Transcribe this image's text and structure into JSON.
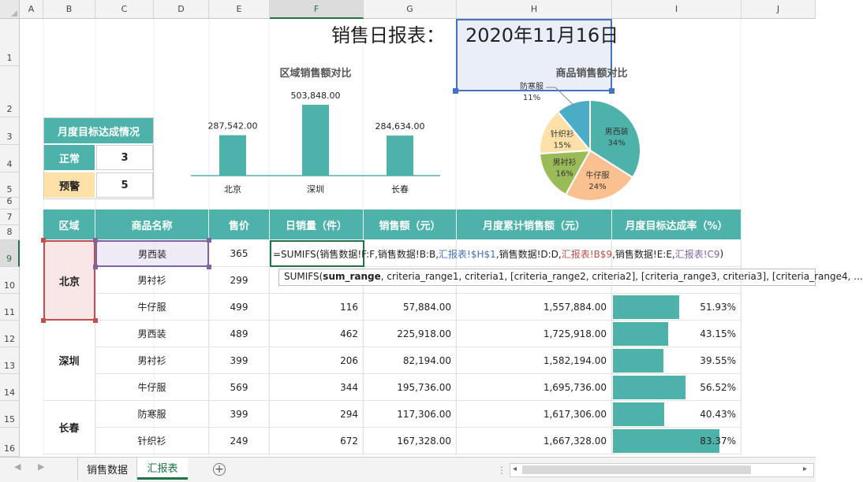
{
  "columns": [
    "A",
    "B",
    "C",
    "D",
    "E",
    "F",
    "G",
    "H",
    "I",
    "J"
  ],
  "rows": [
    "1",
    "2",
    "3",
    "4",
    "5",
    "6",
    "7",
    "8",
    "9",
    "10",
    "11",
    "12",
    "13",
    "14",
    "15",
    "16"
  ],
  "report": {
    "title": "销售日报表：",
    "date": "2020年11月16日"
  },
  "kpi": {
    "title": "月度目标达成情况",
    "normal_label": "正常",
    "normal_value": "3",
    "warn_label": "预警",
    "warn_value": "5"
  },
  "chart_data": [
    {
      "type": "bar",
      "title": "区域销售额对比",
      "categories": [
        "北京",
        "深圳",
        "长春"
      ],
      "values": [
        287542.0,
        503848.0,
        284634.0
      ],
      "value_labels": [
        "287,542.00",
        "503,848.00",
        "284,634.00"
      ],
      "xlabel": "",
      "ylabel": ""
    },
    {
      "type": "pie",
      "title": "商品销售额对比",
      "labels": [
        "男西装",
        "牛仔服",
        "男衬衫",
        "针织衫",
        "防寒服"
      ],
      "values": [
        34,
        24,
        16,
        15,
        11
      ],
      "pct_labels": [
        "34%",
        "24%",
        "16%",
        "15%",
        "11%"
      ],
      "colors": [
        "#4db3aa",
        "#fbc08f",
        "#9bbb59",
        "#fde1a8",
        "#4bacc6"
      ]
    }
  ],
  "table": {
    "headers": [
      "区域",
      "商品名称",
      "售价",
      "日销量（件）",
      "销售额（元）",
      "月度累计销售额（元）",
      "月度目标达成率（%）"
    ],
    "regions": [
      "北京",
      "深圳",
      "长春"
    ],
    "rows": [
      {
        "name": "男西装",
        "price": "365",
        "qty": "",
        "sales": "",
        "cum": "",
        "rate": "",
        "pct": 0
      },
      {
        "name": "男衬衫",
        "price": "299",
        "qty": "",
        "sales": "",
        "cum": "",
        "rate": "",
        "pct": 0
      },
      {
        "name": "牛仔服",
        "price": "499",
        "qty": "116",
        "sales": "57,884.00",
        "cum": "1,557,884.00",
        "rate": "51.93%",
        "pct": 51.93
      },
      {
        "name": "男西装",
        "price": "489",
        "qty": "462",
        "sales": "225,918.00",
        "cum": "1,725,918.00",
        "rate": "43.15%",
        "pct": 43.15
      },
      {
        "name": "男衬衫",
        "price": "399",
        "qty": "206",
        "sales": "82,194.00",
        "cum": "1,582,194.00",
        "rate": "39.55%",
        "pct": 39.55
      },
      {
        "name": "牛仔服",
        "price": "569",
        "qty": "344",
        "sales": "195,736.00",
        "cum": "1,695,736.00",
        "rate": "56.52%",
        "pct": 56.52
      },
      {
        "name": "防寒服",
        "price": "399",
        "qty": "294",
        "sales": "117,306.00",
        "cum": "1,617,306.00",
        "rate": "40.43%",
        "pct": 40.43
      },
      {
        "name": "针织衫",
        "price": "249",
        "qty": "672",
        "sales": "167,328.00",
        "cum": "1,667,328.00",
        "rate": "83.37%",
        "pct": 83.37
      }
    ]
  },
  "formula": {
    "p1": "=SUMIFS(销售数据!F:F,销售数据!B:B,",
    "r1": "汇报表!$H$1",
    "p2": ",销售数据!D:D,",
    "r2": "汇报表!B$9",
    "p3": ",销售数据!E:E,",
    "r3": "汇报表!C9",
    "p4": ")"
  },
  "tooltip": {
    "fn": "SUMIFS(",
    "bold": "sum_range",
    "rest": ", criteria_range1, criteria1, [criteria_range2, criteria2], [criteria_range3, criteria3], [criteria_range4, ..."
  },
  "sheets": {
    "tab1": "销售数据",
    "tab2": "汇报表",
    "add": "+"
  },
  "colors": {
    "accent": "#4db3aa",
    "ref_blue": "#4472c4",
    "ref_red": "#c0504d",
    "ref_purple": "#8064a2",
    "excel_green": "#217346"
  }
}
